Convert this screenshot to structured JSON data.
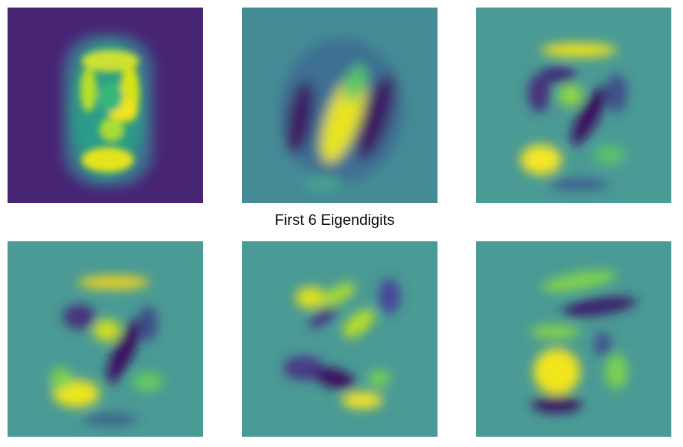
{
  "chart_data": {
    "type": "heatmap",
    "title": "First 6 Eigendigits",
    "colormap": "viridis",
    "grid": false,
    "axes_visible": false,
    "panels": [
      {
        "component": 1,
        "background": "#482475",
        "value_range": [
          0,
          1
        ]
      },
      {
        "component": 2,
        "background": "#458b95",
        "value_range": [
          -1,
          1
        ]
      },
      {
        "component": 3,
        "background": "#4a9a95",
        "value_range": [
          -1,
          1
        ]
      },
      {
        "component": 4,
        "background": "#4a9a95",
        "value_range": [
          -1,
          1
        ]
      },
      {
        "component": 5,
        "background": "#4a9a95",
        "value_range": [
          -1,
          1
        ]
      },
      {
        "component": 6,
        "background": "#4a9a95",
        "value_range": [
          -1,
          1
        ]
      }
    ],
    "colors": {
      "yellow": "#f6e626",
      "green": "#6ccf5a",
      "teal": "#4a9a95",
      "blue": "#3a5c8c",
      "purple": "#440154"
    }
  }
}
